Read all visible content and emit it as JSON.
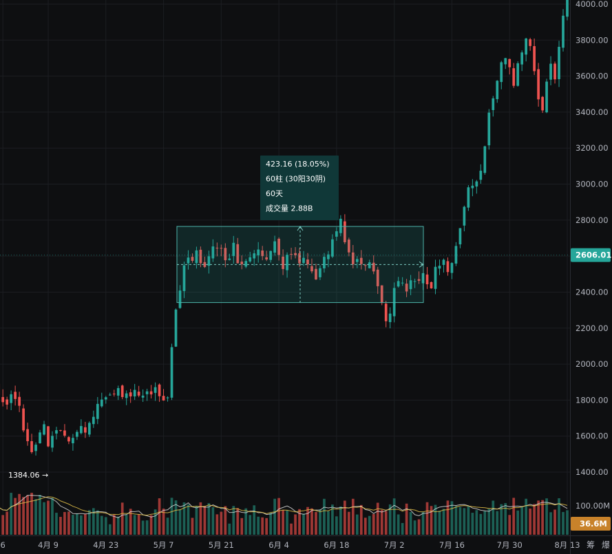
{
  "chart_data": {
    "type": "candlestick",
    "title": "",
    "xlabel": "",
    "ylabel": "",
    "ylim": [
      1300,
      4020
    ],
    "y_ticks": [
      1400,
      1600,
      1800,
      2000,
      2200,
      2400,
      2600,
      2800,
      3000,
      3200,
      3400,
      3600,
      3800,
      4000
    ],
    "y_tick_labels": [
      "1400.00",
      "1600.00",
      "1800.00",
      "2000.00",
      "2200.00",
      "2400.00",
      "2600.00",
      "2800.00",
      "3000.00",
      "3200.00",
      "3400.00",
      "3600.00",
      "3800.00",
      "4000.00"
    ],
    "x_ticks": [
      {
        "label": "6",
        "day": -2
      },
      {
        "label": "4月 9",
        "day": 9
      },
      {
        "label": "4月 23",
        "day": 23
      },
      {
        "label": "5月 7",
        "day": 37
      },
      {
        "label": "5月 21",
        "day": 51
      },
      {
        "label": "6月 4",
        "day": 65
      },
      {
        "label": "6月 18",
        "day": 79
      },
      {
        "label": "7月 2",
        "day": 93
      },
      {
        "label": "7月 16",
        "day": 107
      },
      {
        "label": "7月 30",
        "day": 121
      },
      {
        "label": "8月 13",
        "day": 135
      }
    ],
    "grid": true,
    "up_color": "#26a69a",
    "down_color": "#ef5350",
    "current_price": "2606.01",
    "current_price_value": 2606.01,
    "low_marker": {
      "label": "1384.06",
      "value": 1384.06
    },
    "volume": {
      "axis_label": "100.00M",
      "current_label": "36.6M"
    },
    "measure_box": {
      "price_top": 2765,
      "price_bottom": 2342,
      "line1": "423.16 (18.05%)",
      "line2": "60柱 (30阳30阴)",
      "line3": "60天",
      "line4": "成交量 2.88B"
    },
    "side_labels": [
      "筹",
      "爆"
    ],
    "key_closes": [
      1880,
      1820,
      1790,
      1810,
      1780,
      1600,
      1500,
      1560,
      1680,
      1560,
      1640,
      1660,
      1600,
      1580,
      1620,
      1640,
      1650,
      1800,
      1810,
      1790,
      1830,
      1860,
      1820,
      1840,
      1830,
      1810,
      1850,
      1870,
      1820,
      1830,
      2200,
      2420,
      2600,
      2560,
      2620,
      2550,
      2600,
      2680,
      2620,
      2560,
      2700,
      2540,
      2600,
      2620,
      2640,
      2580,
      2600,
      2690,
      2520,
      2600,
      2610,
      2540,
      2600,
      2550,
      2470,
      2600,
      2620,
      2700,
      2780,
      2660,
      2540,
      2580,
      2520,
      2550,
      2440,
      2300,
      2240,
      2420,
      2480,
      2430,
      2470,
      2440,
      2500,
      2410,
      2560,
      2580,
      2540,
      2600,
      2720,
      2960,
      2980,
      3040,
      3160,
      3460,
      3520,
      3660,
      3720,
      3560,
      3720,
      3820,
      3760,
      3460,
      3380,
      3720,
      3600,
      3900,
      4020
    ]
  }
}
